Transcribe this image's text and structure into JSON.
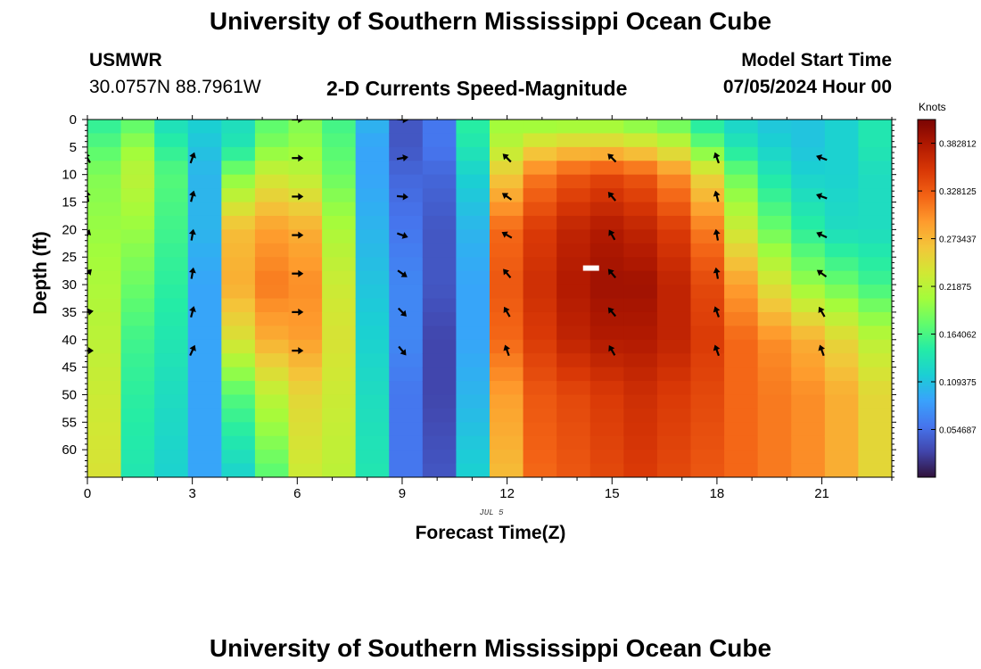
{
  "header": {
    "title": "University of Southern Mississippi Ocean Cube",
    "station": "USMWR",
    "coords": "30.0757N  88.7961W",
    "subtitle": "2-D Currents Speed-Magnitude",
    "model_start_label": "Model Start Time",
    "model_start_value": "07/05/2024 Hour 00"
  },
  "footer": {
    "repeat_title": "University of Southern Mississippi Ocean Cube"
  },
  "colors": {
    "colormap": [
      "#30123b",
      "#4145ab",
      "#4675ed",
      "#39a2fc",
      "#1bcfd4",
      "#24eca6",
      "#61fc6c",
      "#a4fc3b",
      "#d1e834",
      "#f3c63a",
      "#fe9b2d",
      "#f36315",
      "#d93806",
      "#b11901",
      "#7a0403"
    ]
  },
  "chart_data": {
    "type": "heatmap",
    "title": "2-D Currents Speed-Magnitude",
    "xlabel": "Forecast Time(Z)",
    "ylabel": "Depth (ft)",
    "date_annotation": "JUL 5",
    "xlim": [
      0,
      23
    ],
    "ylim": [
      0,
      65
    ],
    "x_ticks": [
      0,
      3,
      6,
      9,
      12,
      15,
      18,
      21
    ],
    "y_ticks": [
      0,
      5,
      10,
      15,
      20,
      25,
      30,
      35,
      40,
      45,
      50,
      55,
      60
    ],
    "colorbar": {
      "label": "Knots",
      "min": 0.0,
      "max": 0.41,
      "tick_labels": [
        "0.054687",
        "0.109375",
        "0.164062",
        "0.21875",
        "0.273437",
        "0.328125",
        "0.382812"
      ],
      "tick_values": [
        0.054687,
        0.109375,
        0.164062,
        0.21875,
        0.273437,
        0.328125,
        0.382812
      ]
    },
    "hours": [
      0,
      1,
      2,
      3,
      4,
      5,
      6,
      7,
      8,
      9,
      10,
      11,
      12,
      13,
      14,
      15,
      16,
      17,
      18,
      19,
      20,
      21,
      22,
      23
    ],
    "depth_profile": [
      0,
      5,
      10,
      20,
      30,
      40,
      50,
      65
    ],
    "speed_knots": [
      [
        0.15,
        0.17,
        0.19,
        0.2,
        0.21,
        0.22,
        0.23,
        0.24
      ],
      [
        0.17,
        0.2,
        0.22,
        0.2,
        0.18,
        0.16,
        0.15,
        0.14
      ],
      [
        0.13,
        0.15,
        0.17,
        0.16,
        0.15,
        0.14,
        0.13,
        0.12
      ],
      [
        0.12,
        0.11,
        0.1,
        0.1,
        0.09,
        0.09,
        0.09,
        0.09
      ],
      [
        0.13,
        0.14,
        0.19,
        0.27,
        0.28,
        0.24,
        0.17,
        0.12
      ],
      [
        0.17,
        0.19,
        0.23,
        0.29,
        0.31,
        0.28,
        0.22,
        0.17
      ],
      [
        0.19,
        0.2,
        0.22,
        0.28,
        0.3,
        0.29,
        0.25,
        0.23
      ],
      [
        0.16,
        0.17,
        0.18,
        0.21,
        0.23,
        0.24,
        0.23,
        0.22
      ],
      [
        0.1,
        0.09,
        0.09,
        0.1,
        0.11,
        0.12,
        0.13,
        0.14
      ],
      [
        0.04,
        0.04,
        0.05,
        0.06,
        0.07,
        0.07,
        0.06,
        0.06
      ],
      [
        0.06,
        0.06,
        0.05,
        0.04,
        0.04,
        0.03,
        0.03,
        0.04
      ],
      [
        0.15,
        0.14,
        0.12,
        0.1,
        0.09,
        0.09,
        0.1,
        0.12
      ],
      [
        0.2,
        0.22,
        0.26,
        0.32,
        0.33,
        0.32,
        0.29,
        0.27
      ],
      [
        0.19,
        0.25,
        0.31,
        0.35,
        0.36,
        0.35,
        0.33,
        0.32
      ],
      [
        0.19,
        0.26,
        0.33,
        0.37,
        0.38,
        0.37,
        0.34,
        0.33
      ],
      [
        0.19,
        0.26,
        0.34,
        0.38,
        0.39,
        0.38,
        0.35,
        0.34
      ],
      [
        0.18,
        0.25,
        0.33,
        0.37,
        0.39,
        0.38,
        0.36,
        0.35
      ],
      [
        0.17,
        0.23,
        0.3,
        0.35,
        0.37,
        0.37,
        0.35,
        0.34
      ],
      [
        0.14,
        0.18,
        0.25,
        0.31,
        0.34,
        0.35,
        0.34,
        0.33
      ],
      [
        0.12,
        0.14,
        0.18,
        0.23,
        0.29,
        0.32,
        0.32,
        0.32
      ],
      [
        0.11,
        0.12,
        0.14,
        0.18,
        0.24,
        0.3,
        0.31,
        0.31
      ],
      [
        0.11,
        0.11,
        0.12,
        0.15,
        0.2,
        0.28,
        0.3,
        0.3
      ],
      [
        0.12,
        0.12,
        0.12,
        0.13,
        0.18,
        0.25,
        0.28,
        0.28
      ],
      [
        0.14,
        0.14,
        0.13,
        0.13,
        0.16,
        0.22,
        0.25,
        0.25
      ]
    ],
    "vectors": {
      "hours": [
        0,
        3,
        6,
        9,
        12,
        15,
        18,
        21
      ],
      "depths": [
        7,
        14,
        21,
        28,
        35,
        42
      ],
      "direction_deg": [
        [
          330,
          350,
          20,
          45,
          80,
          90
        ],
        [
          20,
          15,
          10,
          10,
          15,
          25
        ],
        [
          90,
          90,
          90,
          90,
          90,
          90
        ],
        [
          80,
          95,
          110,
          125,
          135,
          140
        ],
        [
          315,
          305,
          300,
          320,
          330,
          340
        ],
        [
          315,
          320,
          330,
          320,
          320,
          330
        ],
        [
          340,
          345,
          350,
          350,
          340,
          340
        ],
        [
          290,
          290,
          295,
          305,
          330,
          340
        ]
      ],
      "top_vectors": [
        {
          "hour": 6,
          "depth": 0,
          "direction_deg": 90
        },
        {
          "hour": 9,
          "depth": 0,
          "direction_deg": 95
        }
      ]
    },
    "marker": {
      "hour": 14.4,
      "depth": 27,
      "color": "#ffffff"
    }
  }
}
